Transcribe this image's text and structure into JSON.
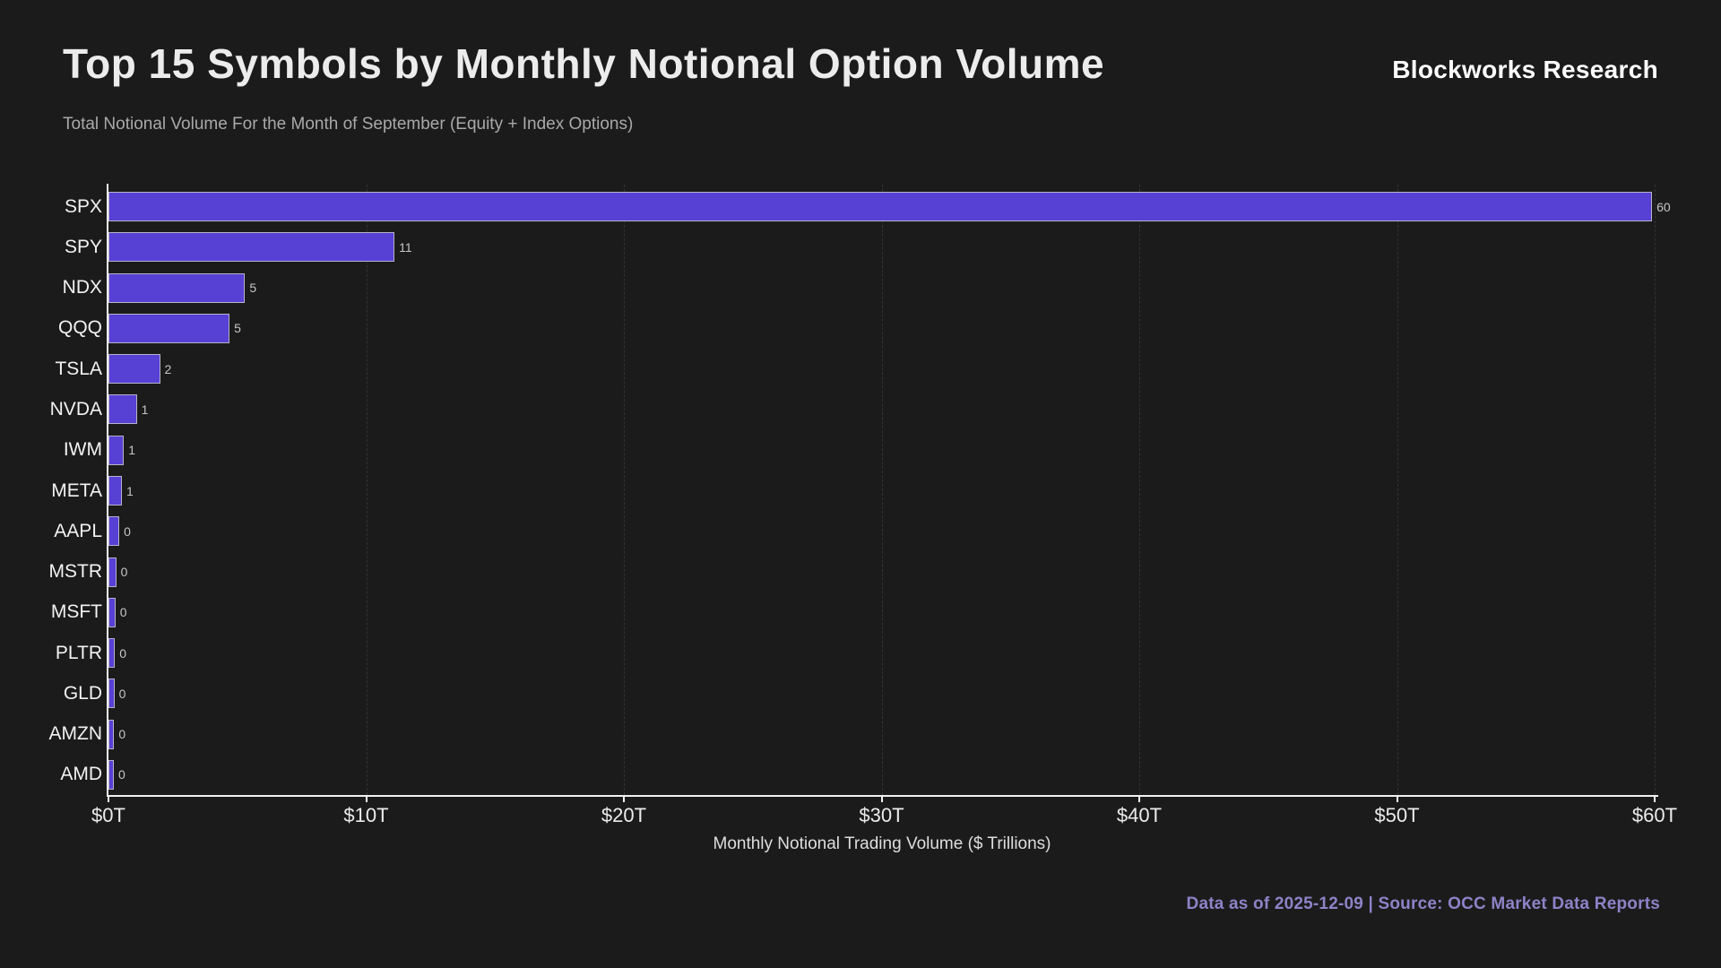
{
  "header": {
    "title": "Top 15 Symbols by Monthly Notional Option Volume",
    "subtitle": "Total Notional Volume For the Month of September (Equity + Index Options)",
    "brand": "Blockworks Research"
  },
  "footer": {
    "text": "Data as of 2025-12-09 | Source: OCC Market Data Reports"
  },
  "colors": {
    "background": "#1b1b1b",
    "bar_fill": "#5740d4",
    "bar_edge": "#b7b3c9",
    "axis": "#f2f2f2",
    "grid": "#323232",
    "footer_accent": "#8d83c8"
  },
  "chart_data": {
    "type": "bar",
    "orientation": "horizontal",
    "title": "Top 15 Symbols by Monthly Notional Option Volume",
    "subtitle": "Total Notional Volume For the Month of September (Equity + Index Options)",
    "categories": [
      "SPX",
      "SPY",
      "NDX",
      "QQQ",
      "TSLA",
      "NVDA",
      "IWM",
      "META",
      "AAPL",
      "MSTR",
      "MSFT",
      "PLTR",
      "GLD",
      "AMZN",
      "AMD"
    ],
    "values": [
      59.9,
      11.1,
      5.3,
      4.7,
      2.0,
      1.1,
      0.6,
      0.52,
      0.42,
      0.3,
      0.27,
      0.25,
      0.23,
      0.22,
      0.21
    ],
    "bar_value_labels": [
      "60",
      "11",
      "5",
      "5",
      "2",
      "1",
      "1",
      "1",
      "0",
      "0",
      "0",
      "0",
      "0",
      "0",
      "0"
    ],
    "xlabel": "Monthly Notional Trading Volume ($ Trillions)",
    "ylabel": "",
    "xlim": [
      0,
      60
    ],
    "x_ticks": [
      {
        "value": 0,
        "label": "$0T"
      },
      {
        "value": 10,
        "label": "$10T"
      },
      {
        "value": 20,
        "label": "$20T"
      },
      {
        "value": 30,
        "label": "$30T"
      },
      {
        "value": 40,
        "label": "$40T"
      },
      {
        "value": 50,
        "label": "$50T"
      },
      {
        "value": 60,
        "label": "$60T"
      }
    ],
    "grid": "vertical",
    "legend": "none"
  }
}
